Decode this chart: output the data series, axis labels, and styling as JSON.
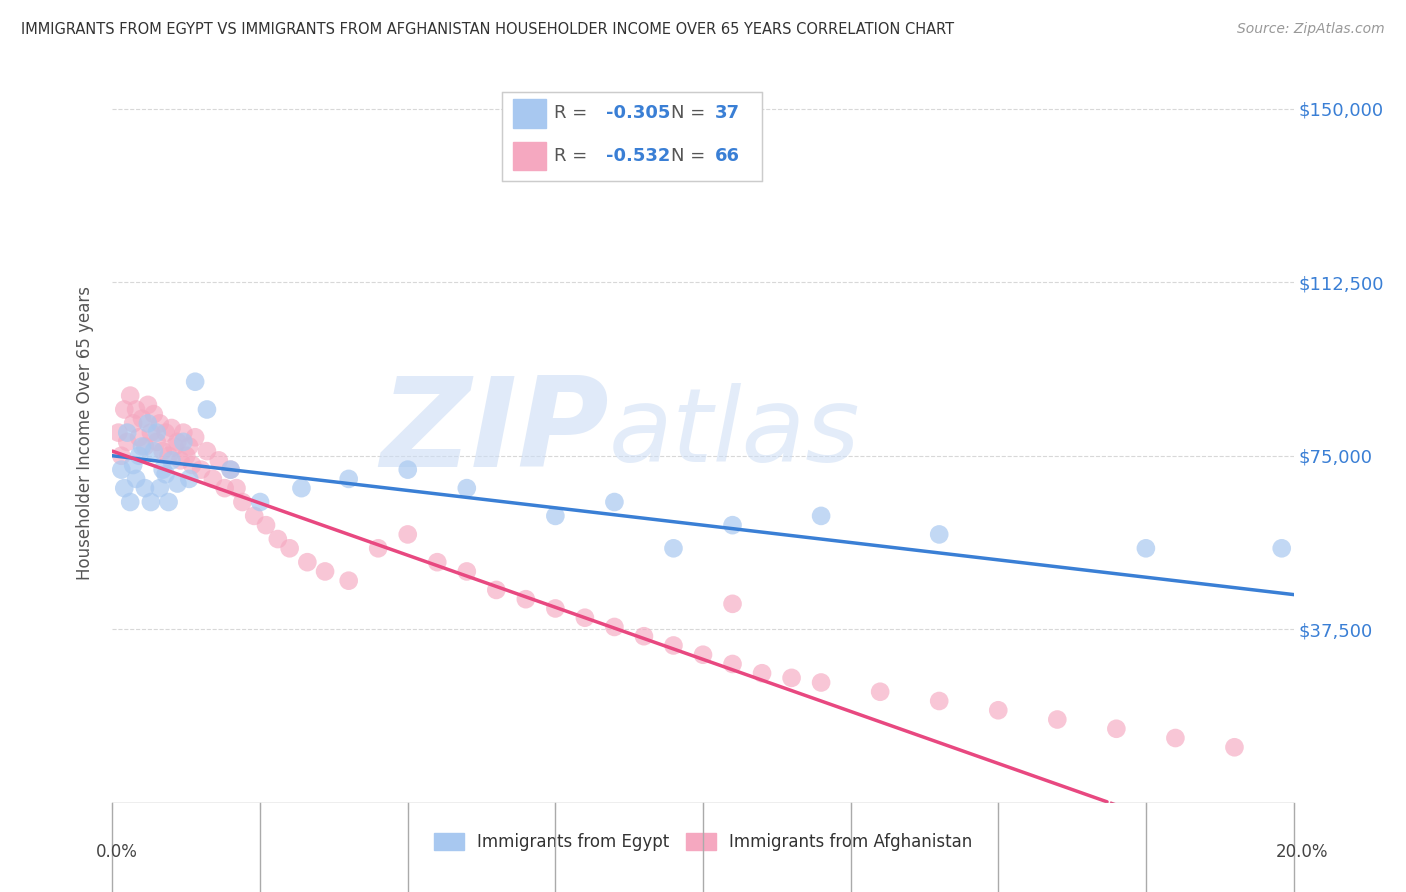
{
  "title": "IMMIGRANTS FROM EGYPT VS IMMIGRANTS FROM AFGHANISTAN HOUSEHOLDER INCOME OVER 65 YEARS CORRELATION CHART",
  "source": "Source: ZipAtlas.com",
  "ylabel": "Householder Income Over 65 years",
  "xlim": [
    0.0,
    20.0
  ],
  "ylim": [
    0,
    160000
  ],
  "yticks": [
    0,
    37500,
    75000,
    112500,
    150000
  ],
  "ytick_labels": [
    "",
    "$37,500",
    "$75,000",
    "$112,500",
    "$150,000"
  ],
  "egypt_color": "#a8c8f0",
  "afghanistan_color": "#f5a8c0",
  "egypt_line_color": "#3a7fd5",
  "afghanistan_line_color": "#e84880",
  "watermark_zip": "ZIP",
  "watermark_atlas": "atlas",
  "grid_color": "#d8d8d8",
  "background_color": "#ffffff",
  "egypt_line_intercept": 75000,
  "egypt_line_slope": -1500,
  "afghanistan_line_intercept": 76000,
  "afghanistan_line_slope": -4500,
  "egypt_x": [
    0.15,
    0.2,
    0.25,
    0.3,
    0.35,
    0.4,
    0.45,
    0.5,
    0.55,
    0.6,
    0.65,
    0.7,
    0.75,
    0.8,
    0.85,
    0.9,
    0.95,
    1.0,
    1.1,
    1.2,
    1.3,
    1.4,
    1.6,
    2.0,
    2.5,
    3.2,
    4.0,
    5.0,
    6.0,
    7.5,
    8.5,
    9.5,
    10.5,
    12.0,
    14.0,
    17.5,
    19.8
  ],
  "egypt_y": [
    72000,
    68000,
    80000,
    65000,
    73000,
    70000,
    75000,
    77000,
    68000,
    82000,
    65000,
    76000,
    80000,
    68000,
    72000,
    71000,
    65000,
    74000,
    69000,
    78000,
    70000,
    91000,
    85000,
    72000,
    65000,
    68000,
    70000,
    72000,
    68000,
    62000,
    65000,
    55000,
    60000,
    62000,
    58000,
    55000,
    55000
  ],
  "afghanistan_x": [
    0.1,
    0.15,
    0.2,
    0.25,
    0.3,
    0.35,
    0.4,
    0.45,
    0.5,
    0.55,
    0.6,
    0.65,
    0.7,
    0.75,
    0.8,
    0.85,
    0.9,
    0.95,
    1.0,
    1.05,
    1.1,
    1.15,
    1.2,
    1.25,
    1.3,
    1.35,
    1.4,
    1.5,
    1.6,
    1.7,
    1.8,
    1.9,
    2.0,
    2.1,
    2.2,
    2.4,
    2.6,
    2.8,
    3.0,
    3.3,
    3.6,
    4.0,
    4.5,
    5.0,
    5.5,
    6.0,
    6.5,
    7.0,
    7.5,
    8.0,
    8.5,
    9.0,
    9.5,
    10.0,
    10.5,
    11.0,
    11.5,
    12.0,
    13.0,
    14.0,
    15.0,
    16.0,
    17.0,
    18.0,
    19.0,
    10.5
  ],
  "afghanistan_y": [
    80000,
    75000,
    85000,
    78000,
    88000,
    82000,
    85000,
    79000,
    83000,
    77000,
    86000,
    80000,
    84000,
    78000,
    82000,
    76000,
    80000,
    75000,
    81000,
    77000,
    78000,
    74000,
    80000,
    75000,
    77000,
    73000,
    79000,
    72000,
    76000,
    70000,
    74000,
    68000,
    72000,
    68000,
    65000,
    62000,
    60000,
    57000,
    55000,
    52000,
    50000,
    48000,
    55000,
    58000,
    52000,
    50000,
    46000,
    44000,
    42000,
    40000,
    38000,
    36000,
    34000,
    32000,
    30000,
    28000,
    27000,
    26000,
    24000,
    22000,
    20000,
    18000,
    16000,
    14000,
    12000,
    43000
  ]
}
